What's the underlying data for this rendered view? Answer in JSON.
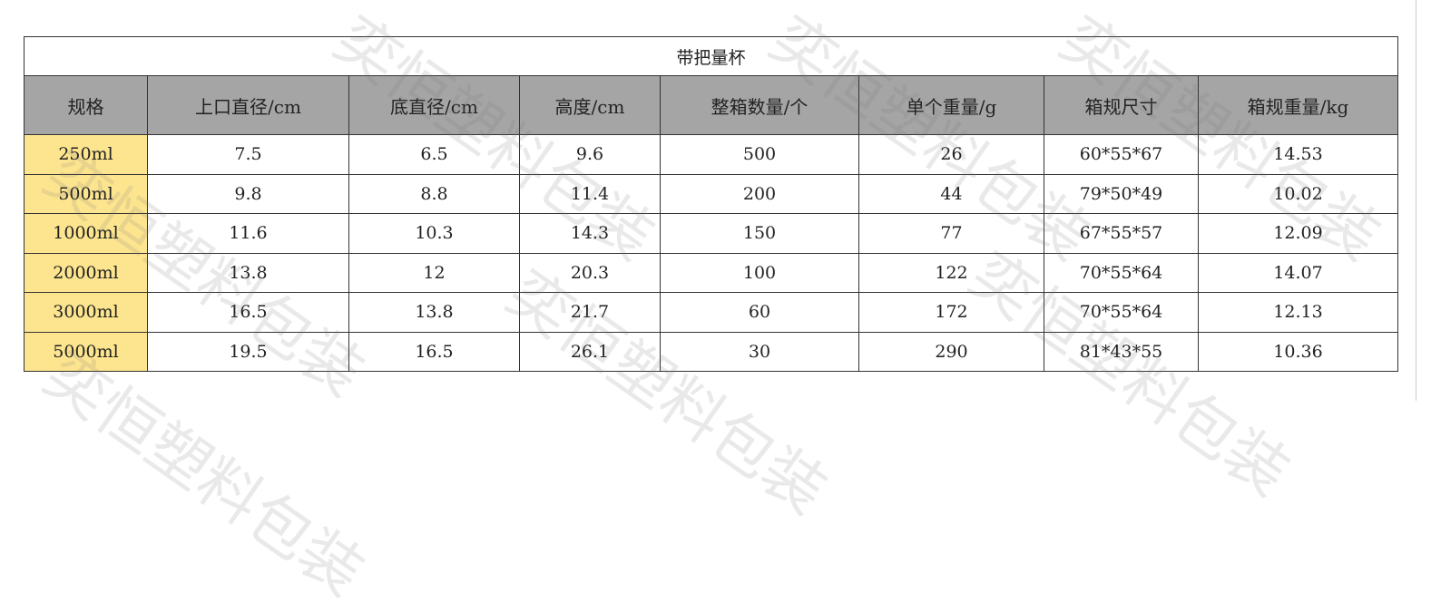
{
  "table": {
    "title": "带把量杯",
    "headers": [
      "规格",
      "上口直径/cm",
      "底直径/cm",
      "高度/cm",
      "整箱数量/个",
      "单个重量/g",
      "箱规尺寸",
      "箱规重量/kg"
    ],
    "rows": [
      [
        "250ml",
        "7.5",
        "6.5",
        "9.6",
        "500",
        "26",
        "60*55*67",
        "14.53"
      ],
      [
        "500ml",
        "9.8",
        "8.8",
        "11.4",
        "200",
        "44",
        "79*50*49",
        "10.02"
      ],
      [
        "1000ml",
        "11.6",
        "10.3",
        "14.3",
        "150",
        "77",
        "67*55*57",
        "12.09"
      ],
      [
        "2000ml",
        "13.8",
        "12",
        "20.3",
        "100",
        "122",
        "70*55*64",
        "14.07"
      ],
      [
        "3000ml",
        "16.5",
        "13.8",
        "21.7",
        "60",
        "172",
        "70*55*64",
        "12.13"
      ],
      [
        "5000ml",
        "19.5",
        "16.5",
        "26.1",
        "30",
        "290",
        "81*43*55",
        "10.36"
      ]
    ]
  },
  "colors": {
    "header_bg": "#a6a5a5",
    "spec_bg": "#fde58f"
  },
  "watermark": "奕恒塑料包装"
}
